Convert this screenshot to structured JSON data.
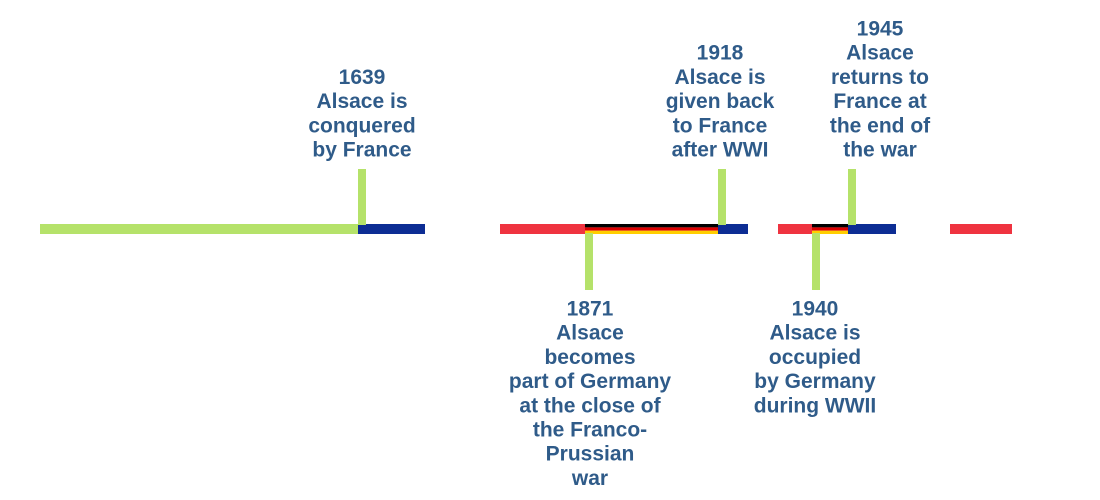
{
  "events": [
    {
      "year": "1639",
      "lines": [
        "Alsace is",
        "conquered",
        "by France"
      ]
    },
    {
      "year": "1871",
      "lines": [
        "Alsace",
        "becomes",
        "part of Germany",
        "at the close of",
        "the Franco-",
        "Prussian",
        "war"
      ]
    },
    {
      "year": "1918",
      "lines": [
        "Alsace is",
        "given back",
        "to France",
        "after WWI"
      ]
    },
    {
      "year": "1940",
      "lines": [
        "Alsace is",
        "occupied",
        "by Germany",
        "during WWII"
      ]
    },
    {
      "year": "1945",
      "lines": [
        "Alsace",
        "returns to",
        "France at",
        "the end of",
        "the war"
      ]
    }
  ]
}
